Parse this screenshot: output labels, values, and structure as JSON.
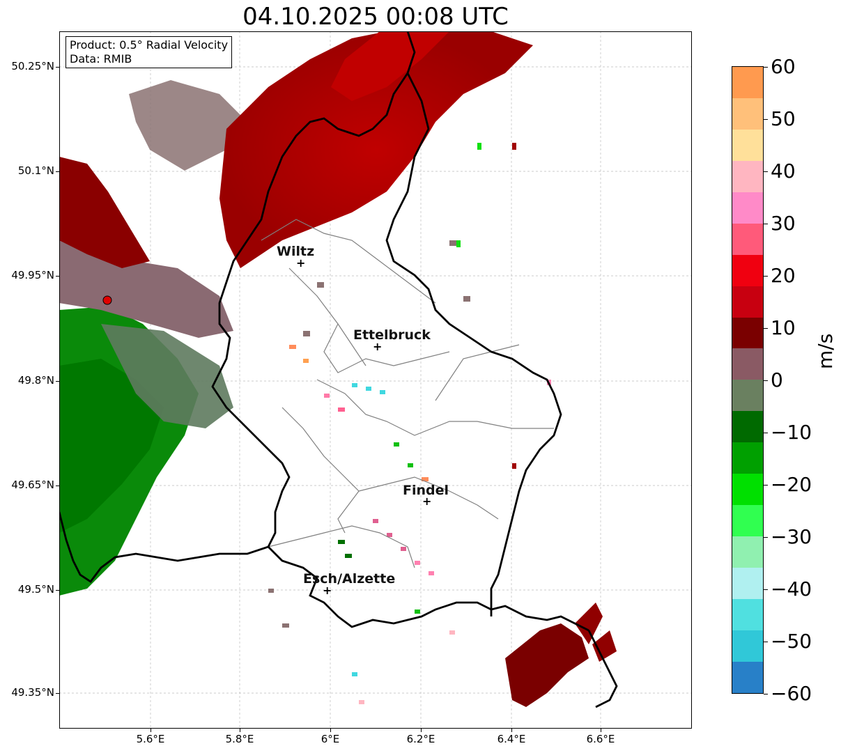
{
  "title": "04.10.2025 00:08 UTC",
  "info": {
    "product": "Product: 0.5° Radial Velocity",
    "data": "Data: RMIB"
  },
  "y_ticks": [
    "50.25°N",
    "50.1°N",
    "49.95°N",
    "49.8°N",
    "49.65°N",
    "49.5°N",
    "49.35°N"
  ],
  "x_ticks": [
    "5.6°E",
    "5.8°E",
    "6°E",
    "6.2°E",
    "6.4°E",
    "6.6°E"
  ],
  "colorbar": {
    "label": "m/s",
    "ticks": [
      "60",
      "50",
      "40",
      "30",
      "20",
      "10",
      "0",
      "−10",
      "−20",
      "−30",
      "−40",
      "−50",
      "−60"
    ],
    "colors": [
      "#ff9a4f",
      "#ffc07a",
      "#ffe09a",
      "#ffb6c1",
      "#ff8ac8",
      "#ff5a7a",
      "#f00010",
      "#c80010",
      "#7a0000",
      "#8a5a64",
      "#6a8060",
      "#006a00",
      "#00a000",
      "#00e000",
      "#30ff50",
      "#90f0b0",
      "#b0f0f0",
      "#50e0e0",
      "#30c8d8",
      "#2880c8"
    ]
  },
  "cities": [
    {
      "name": "Wiltz"
    },
    {
      "name": "Ettelbruck"
    },
    {
      "name": "Findel"
    },
    {
      "name": "Esch/Alzette"
    }
  ],
  "radar_site": {
    "name": "radar-site",
    "color": "#e00000"
  }
}
